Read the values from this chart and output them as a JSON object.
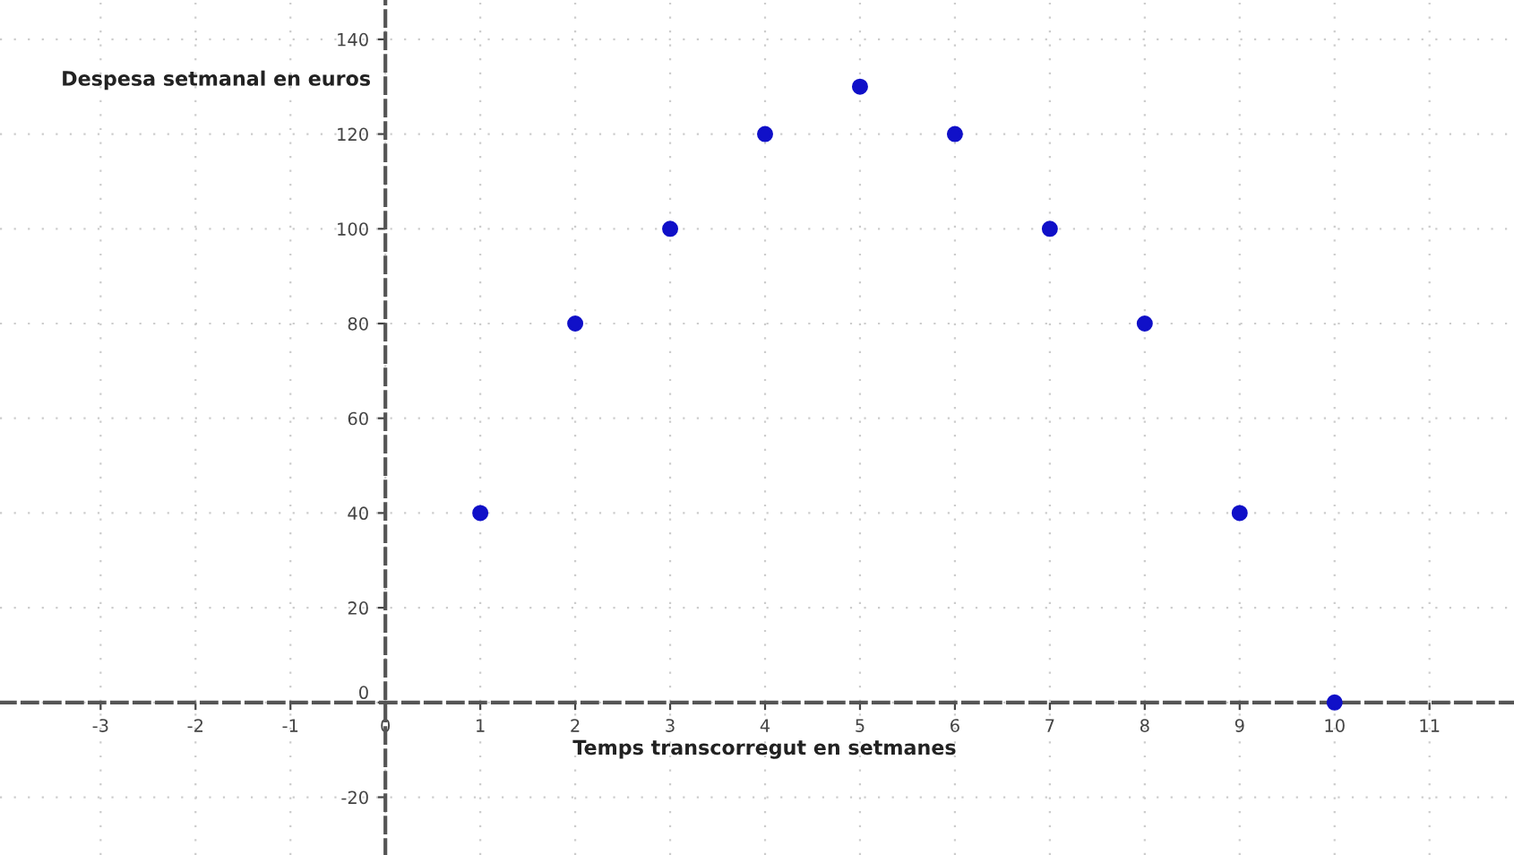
{
  "chart_data": {
    "type": "scatter",
    "xlabel": "Temps transcorregut en setmanes",
    "ylabel": "Despesa setmanal en euros",
    "x": [
      1,
      2,
      3,
      4,
      5,
      6,
      7,
      8,
      9,
      10
    ],
    "series": [
      {
        "color": "#1010c8",
        "values": [
          40,
          80,
          100,
          120,
          130,
          120,
          100,
          80,
          40,
          0
        ]
      }
    ],
    "xlim": [
      -4.06,
      11.89
    ],
    "ylim": [
      -32.2,
      148.3
    ],
    "xticks": [
      -3,
      -2,
      -1,
      0,
      1,
      2,
      3,
      4,
      5,
      6,
      7,
      8,
      9,
      10,
      11
    ],
    "yticks": [
      -20,
      0,
      20,
      40,
      60,
      80,
      100,
      120,
      140
    ],
    "grid": true,
    "marker": "circle"
  }
}
